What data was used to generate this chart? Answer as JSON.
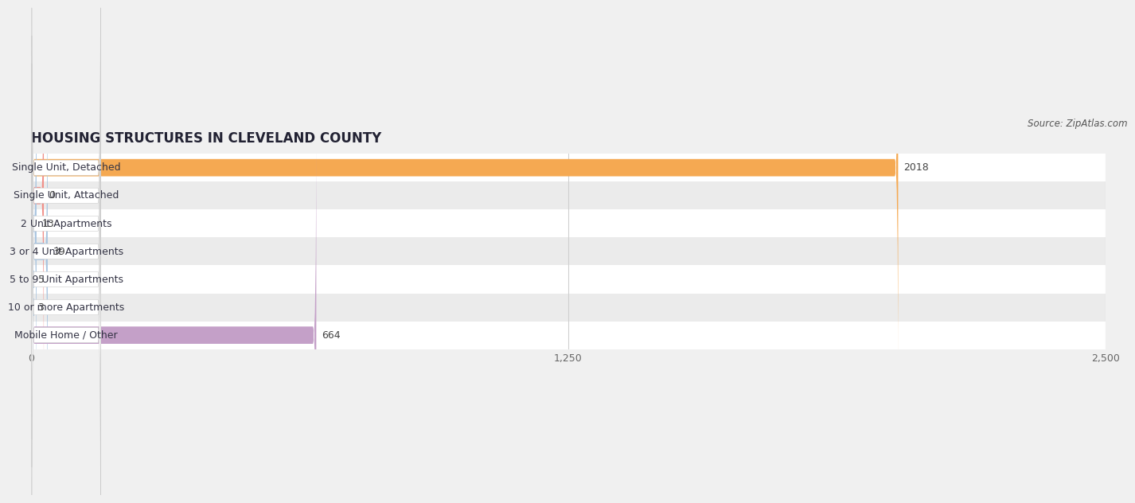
{
  "title": "HOUSING STRUCTURES IN CLEVELAND COUNTY",
  "source": "Source: ZipAtlas.com",
  "categories": [
    "Single Unit, Detached",
    "Single Unit, Attached",
    "2 Unit Apartments",
    "3 or 4 Unit Apartments",
    "5 to 9 Unit Apartments",
    "10 or more Apartments",
    "Mobile Home / Other"
  ],
  "values": [
    2018,
    0,
    13,
    39,
    5,
    3,
    664
  ],
  "bar_colors": [
    "#f5a952",
    "#f0908a",
    "#a8c4e0",
    "#a8c4e0",
    "#a8c4e0",
    "#a8c4e0",
    "#c4a0c8"
  ],
  "row_bg_even": "#ffffff",
  "row_bg_odd": "#ebebeb",
  "xlim": [
    0,
    2500
  ],
  "xticks": [
    0,
    1250,
    2500
  ],
  "xtick_labels": [
    "0",
    "1,250",
    "2,500"
  ],
  "background_color": "#f0f0f0",
  "bar_height": 0.62,
  "label_fontsize": 9,
  "value_fontsize": 9,
  "title_fontsize": 12,
  "source_fontsize": 8.5,
  "grid_color": "#d0d0d0",
  "label_box_color": "#ffffff",
  "label_box_edge": "#cccccc",
  "value_color": "#444444",
  "title_color": "#222233",
  "source_color": "#555555"
}
